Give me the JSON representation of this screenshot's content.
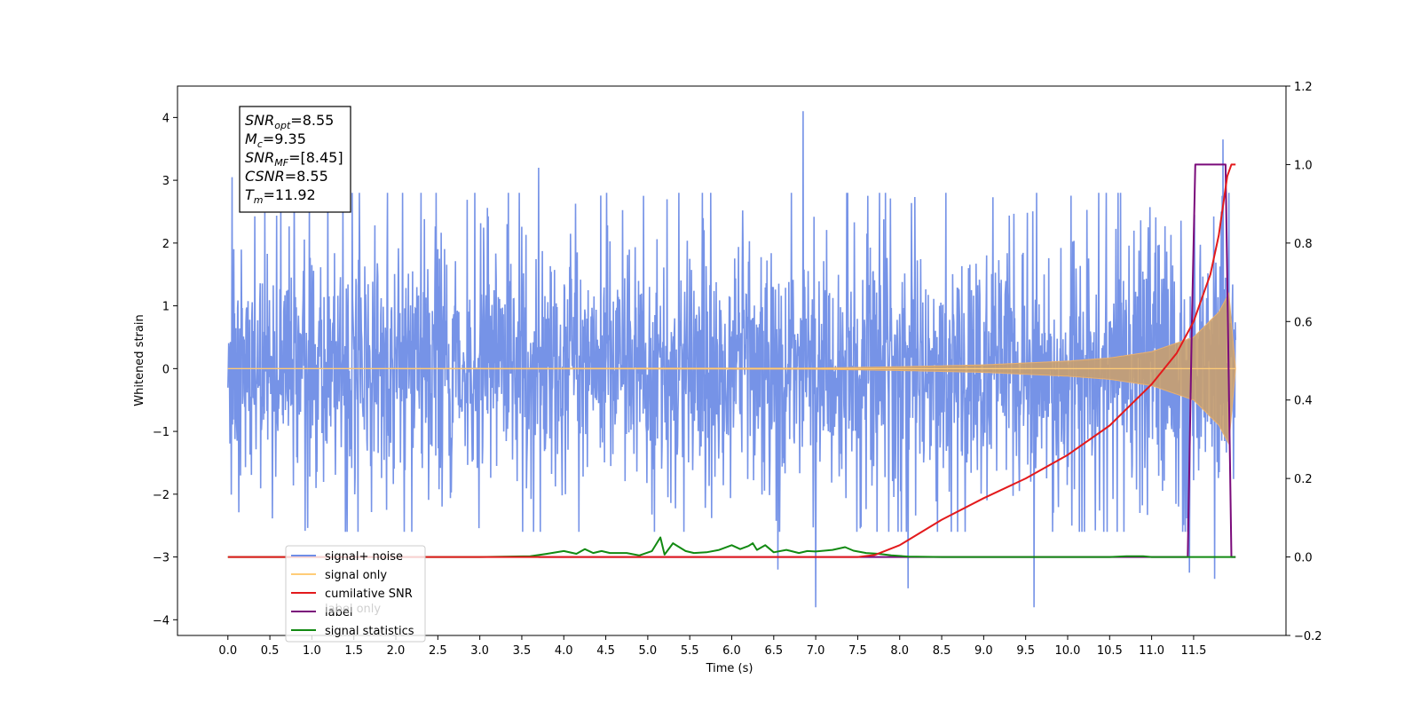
{
  "chart_data": {
    "type": "line",
    "title": "",
    "xlabel": "Time (s)",
    "ylabel": "Whitened strain",
    "xlim": [
      -0.6,
      12.6
    ],
    "ylim": [
      -4.25,
      4.5
    ],
    "y2lim": [
      -0.2,
      1.2
    ],
    "x_ticks": [
      "0.0",
      "0.5",
      "1.0",
      "1.5",
      "2.0",
      "2.5",
      "3.0",
      "3.5",
      "4.0",
      "4.5",
      "5.0",
      "5.5",
      "6.0",
      "6.5",
      "7.0",
      "7.5",
      "8.0",
      "8.5",
      "9.0",
      "9.5",
      "10.0",
      "10.5",
      "11.0",
      "11.5"
    ],
    "y_ticks": [
      "4",
      "3",
      "2",
      "1",
      "0",
      "−1",
      "−2",
      "−3",
      "−4"
    ],
    "y2_ticks": [
      "1.2",
      "1.0",
      "0.8",
      "0.6",
      "0.4",
      "0.2",
      "0.0",
      "−0.2"
    ],
    "grid": false,
    "legend_position": "lower-left",
    "legend": [
      {
        "name": "signal+ noise",
        "color": "#6f8de6"
      },
      {
        "name": "signal only",
        "color": "#ffcc77"
      },
      {
        "name": "cumilative SNR",
        "color": "#e31a1c"
      },
      {
        "name": "label",
        "color": "#7a0a7a"
      },
      {
        "name": "signal statistics",
        "color": "#128a12"
      }
    ],
    "hidden_legend_text": [
      "label only"
    ],
    "annotation": [
      {
        "base": "SNR",
        "sub": "opt",
        "value": "=8.55"
      },
      {
        "base": "M",
        "sub": "c",
        "value": "=9.35"
      },
      {
        "base": "SNR",
        "sub": "MF",
        "value": "=[8.45]"
      },
      {
        "base": "CSNR",
        "sub": "",
        "value": "=8.55"
      },
      {
        "base": "T",
        "sub": "m",
        "value": "=11.92"
      }
    ],
    "series": [
      {
        "name": "signal+ noise",
        "axis": "left",
        "color": "#6f8de6",
        "description": "whitened noisy strain, roughly zero mean, envelope about ±2.3",
        "x_range": [
          0.0,
          12.0
        ],
        "envelope": 2.3,
        "peaks": [
          [
            6.85,
            4.1
          ],
          [
            11.85,
            3.65
          ],
          [
            3.7,
            3.2
          ],
          [
            0.05,
            3.05
          ],
          [
            7.0,
            -3.8
          ],
          [
            9.6,
            -3.8
          ],
          [
            11.75,
            -3.35
          ],
          [
            11.45,
            -3.25
          ],
          [
            8.1,
            -3.5
          ],
          [
            6.55,
            -3.2
          ]
        ]
      },
      {
        "name": "signal only",
        "axis": "left",
        "color": "#ffcc77",
        "description": "chirp waveform, amplitude grows toward merger",
        "x_range": [
          0.0,
          12.0
        ],
        "amplitude": [
          [
            0.0,
            0.0
          ],
          [
            7.0,
            0.01
          ],
          [
            8.0,
            0.03
          ],
          [
            9.0,
            0.06
          ],
          [
            10.0,
            0.12
          ],
          [
            10.5,
            0.17
          ],
          [
            11.0,
            0.27
          ],
          [
            11.5,
            0.5
          ],
          [
            11.8,
            0.9
          ],
          [
            11.92,
            1.2
          ],
          [
            12.0,
            0.0
          ]
        ]
      },
      {
        "name": "cumilative SNR",
        "axis": "right",
        "x": [
          0.0,
          7.5,
          7.7,
          8.0,
          8.5,
          9.0,
          9.5,
          10.0,
          10.5,
          11.0,
          11.3,
          11.5,
          11.7,
          11.8,
          11.9,
          11.95,
          12.0
        ],
        "y": [
          0.0,
          0.0,
          0.005,
          0.03,
          0.095,
          0.15,
          0.2,
          0.26,
          0.335,
          0.44,
          0.52,
          0.6,
          0.72,
          0.82,
          0.97,
          1.0,
          1.0
        ]
      },
      {
        "name": "label",
        "axis": "right",
        "x": [
          3.7,
          11.43,
          11.48,
          11.52,
          11.88,
          11.95,
          12.0
        ],
        "y": [
          0.0,
          0.0,
          0.6,
          1.0,
          1.0,
          0.0,
          0.0
        ]
      },
      {
        "name": "signal statistics",
        "axis": "right",
        "x": [
          0.0,
          3.0,
          3.6,
          3.8,
          4.0,
          4.15,
          4.25,
          4.35,
          4.45,
          4.55,
          4.75,
          4.9,
          5.05,
          5.15,
          5.2,
          5.3,
          5.45,
          5.55,
          5.7,
          5.85,
          6.0,
          6.1,
          6.2,
          6.25,
          6.3,
          6.4,
          6.5,
          6.65,
          6.8,
          6.9,
          7.0,
          7.2,
          7.35,
          7.45,
          7.6,
          7.75,
          7.9,
          8.1,
          8.5,
          10.5,
          10.7,
          10.9,
          11.0,
          12.0
        ],
        "y": [
          0.0,
          0.0,
          0.002,
          0.008,
          0.015,
          0.008,
          0.02,
          0.01,
          0.015,
          0.01,
          0.01,
          0.004,
          0.015,
          0.05,
          0.006,
          0.035,
          0.015,
          0.01,
          0.012,
          0.018,
          0.03,
          0.02,
          0.028,
          0.035,
          0.018,
          0.03,
          0.012,
          0.018,
          0.01,
          0.015,
          0.014,
          0.018,
          0.025,
          0.016,
          0.01,
          0.008,
          0.004,
          0.001,
          0.0,
          0.0,
          0.002,
          0.002,
          0.0,
          0.0
        ]
      }
    ]
  }
}
